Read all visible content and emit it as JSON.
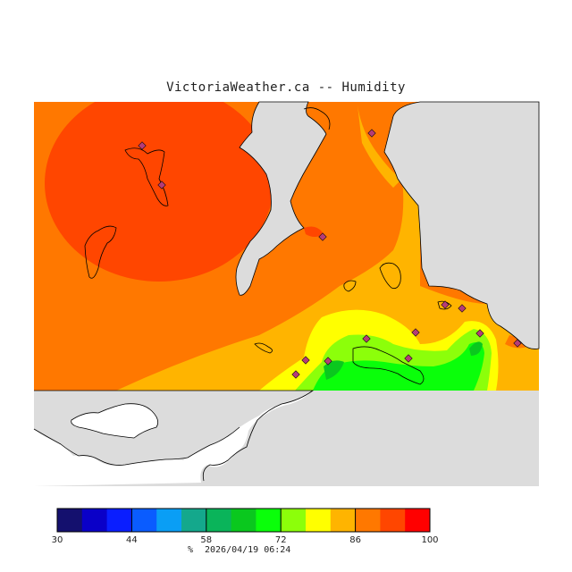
{
  "title": "VictoriaWeather.ca -- Humidity",
  "legend": {
    "unit": "%",
    "timestamp": "2026/04/19 06:24",
    "ticks": [
      "30",
      "44",
      "58",
      "72",
      "86",
      "100"
    ],
    "colors": [
      "#14106e",
      "#0a00c8",
      "#0a1eff",
      "#0a5cff",
      "#0a9ef5",
      "#14a88c",
      "#0ab45a",
      "#0ac81e",
      "#0aff0a",
      "#8cff0a",
      "#ffff00",
      "#ffb400",
      "#ff7800",
      "#ff4600",
      "#ff0000"
    ]
  },
  "palette": {
    "background": "#ffffff",
    "no_data": "#dcdcdc",
    "outside_area": "#ffffff",
    "coastline": "#000000",
    "station_marker": "#b43c78"
  }
}
